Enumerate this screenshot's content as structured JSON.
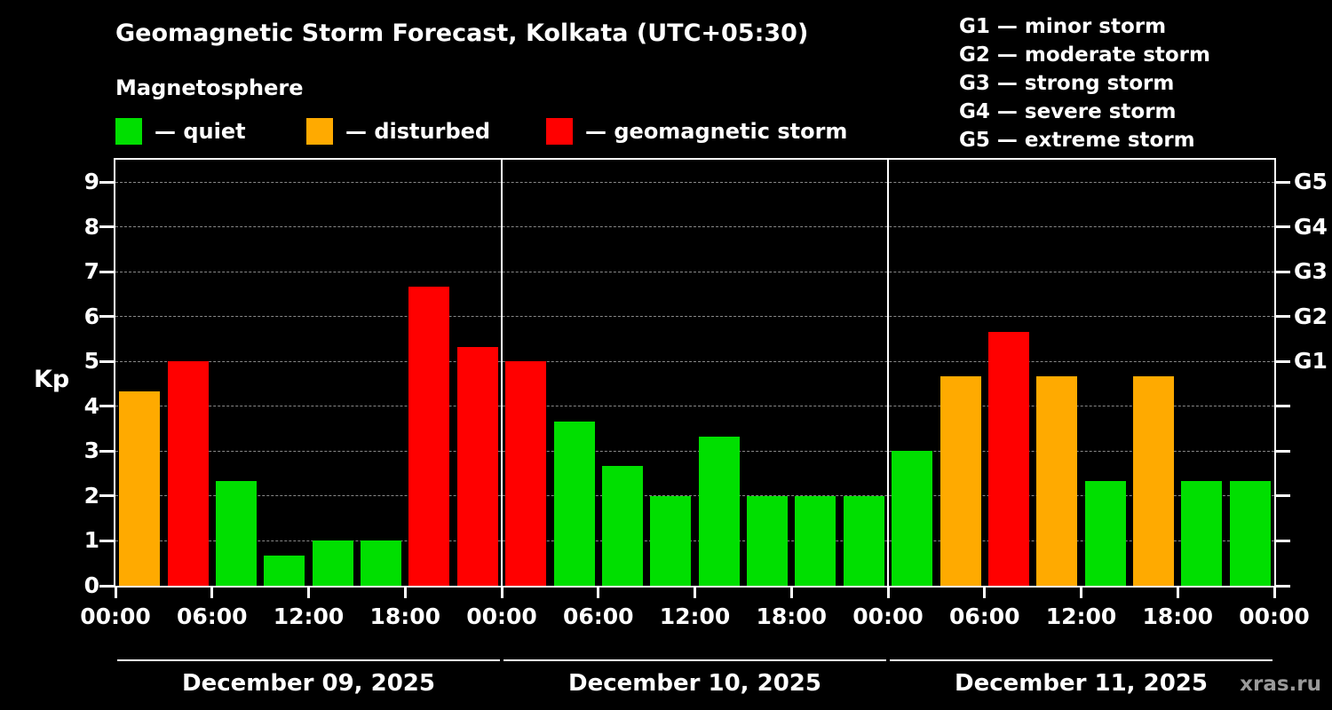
{
  "title": "Geomagnetic Storm Forecast, Kolkata (UTC+05:30)",
  "subtitle": "Magnetosphere",
  "watermark": "xras.ru",
  "colors": {
    "quiet": "#00df00",
    "disturbed": "#ffaa00",
    "storm": "#ff0000",
    "background": "#000000",
    "axis": "#ffffff",
    "grid": "#888888",
    "watermark": "#9a9a9a"
  },
  "legend": [
    {
      "key": "quiet",
      "label": "— quiet"
    },
    {
      "key": "disturbed",
      "label": "— disturbed"
    },
    {
      "key": "storm",
      "label": "— geomagnetic storm"
    }
  ],
  "g_scale": [
    "G1 — minor storm",
    "G2 — moderate storm",
    "G3 — strong storm",
    "G4 — severe storm",
    "G5 — extreme storm"
  ],
  "chart_data": {
    "type": "bar",
    "title": "Geomagnetic Storm Forecast, Kolkata (UTC+05:30)",
    "ylabel": "Kp",
    "ylim": [
      0,
      9.5
    ],
    "yticks": [
      0,
      1,
      2,
      3,
      4,
      5,
      6,
      7,
      8,
      9
    ],
    "right_axis": [
      {
        "kp": 5,
        "label": "G1"
      },
      {
        "kp": 6,
        "label": "G2"
      },
      {
        "kp": 7,
        "label": "G3"
      },
      {
        "kp": 8,
        "label": "G4"
      },
      {
        "kp": 9,
        "label": "G5"
      }
    ],
    "x_tick_labels": [
      "00:00",
      "06:00",
      "12:00",
      "18:00",
      "00:00",
      "06:00",
      "12:00",
      "18:00",
      "00:00",
      "06:00",
      "12:00",
      "18:00",
      "00:00"
    ],
    "bar_interval_hours": 3,
    "color_rules": {
      "quiet_below": 4,
      "storm_at_or_above": 5
    },
    "days": [
      {
        "date": "December 09, 2025",
        "values": [
          4.33,
          5,
          2.33,
          0.67,
          1,
          1,
          6.67,
          5.33
        ]
      },
      {
        "date": "December 10, 2025",
        "values": [
          5,
          3.67,
          2.67,
          2,
          3.33,
          2,
          2,
          2
        ]
      },
      {
        "date": "December 11, 2025",
        "values": [
          3,
          4.67,
          5.67,
          4.67,
          2.33,
          4.67,
          2.33,
          2.33
        ]
      }
    ],
    "grid": {
      "horizontal": "dashed gray at each Kp integer"
    },
    "legend_position": "top-left"
  }
}
